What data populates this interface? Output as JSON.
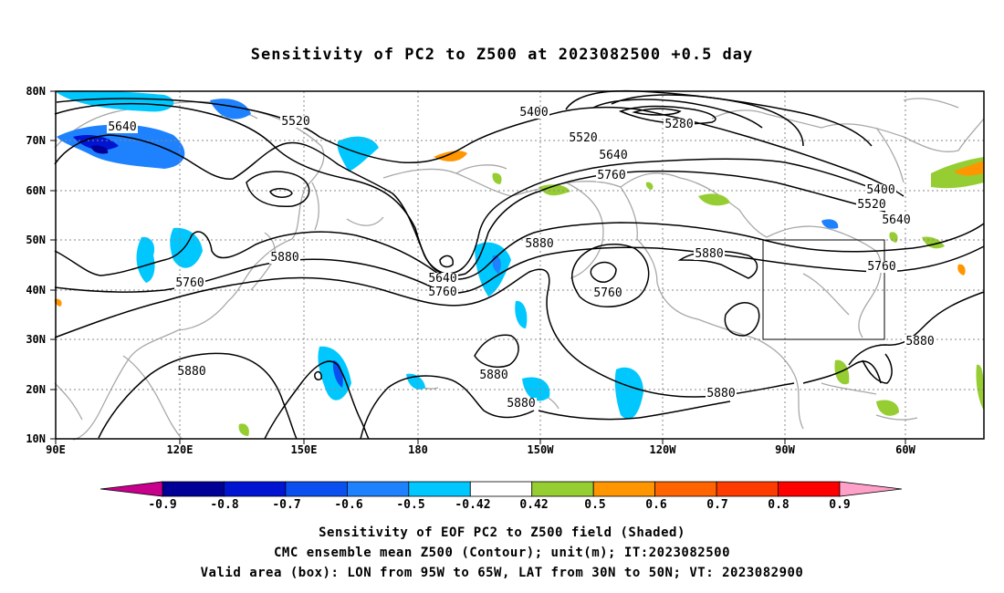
{
  "title": "Sensitivity of PC2 to Z500 at 2023082500 +0.5 day",
  "axes": {
    "lon_ticks": [
      "90E",
      "120E",
      "150E",
      "180",
      "150W",
      "120W",
      "90W",
      "60W"
    ],
    "lat_ticks": [
      "80N",
      "70N",
      "60N",
      "50N",
      "40N",
      "30N",
      "20N",
      "10N"
    ]
  },
  "contour_labels": [
    {
      "text": "5640"
    },
    {
      "text": "5520"
    },
    {
      "text": "5400"
    },
    {
      "text": "5280"
    },
    {
      "text": "5520"
    },
    {
      "text": "5640"
    },
    {
      "text": "5760"
    },
    {
      "text": "5400"
    },
    {
      "text": "5520"
    },
    {
      "text": "5640"
    },
    {
      "text": "5880"
    },
    {
      "text": "5760"
    },
    {
      "text": "5640"
    },
    {
      "text": "5760"
    },
    {
      "text": "5880"
    },
    {
      "text": "5760"
    },
    {
      "text": "5880"
    },
    {
      "text": "5760"
    },
    {
      "text": "5880"
    },
    {
      "text": "5880"
    },
    {
      "text": "5880"
    },
    {
      "text": "5880"
    },
    {
      "text": "5880"
    }
  ],
  "colorbar": {
    "labels": [
      "-0.9",
      "-0.8",
      "-0.7",
      "-0.6",
      "-0.5",
      "-0.42",
      "0.42",
      "0.5",
      "0.6",
      "0.7",
      "0.8",
      "0.9"
    ],
    "colors": [
      "#c8008c",
      "#000096",
      "#0014d2",
      "#0a50f0",
      "#1e82ff",
      "#00c8ff",
      "#ffffff",
      "#96cd32",
      "#ff9600",
      "#ff6400",
      "#ff3c00",
      "#ff0000",
      "#ffa0c8"
    ]
  },
  "captions": [
    "Sensitivity of EOF PC2 to Z500 field (Shaded)",
    "CMC ensemble mean Z500 (Contour); unit(m); IT:2023082500",
    "Valid area (box): LON from 95W to 65W, LAT from 30N to 50N; VT: 2023082900"
  ]
}
